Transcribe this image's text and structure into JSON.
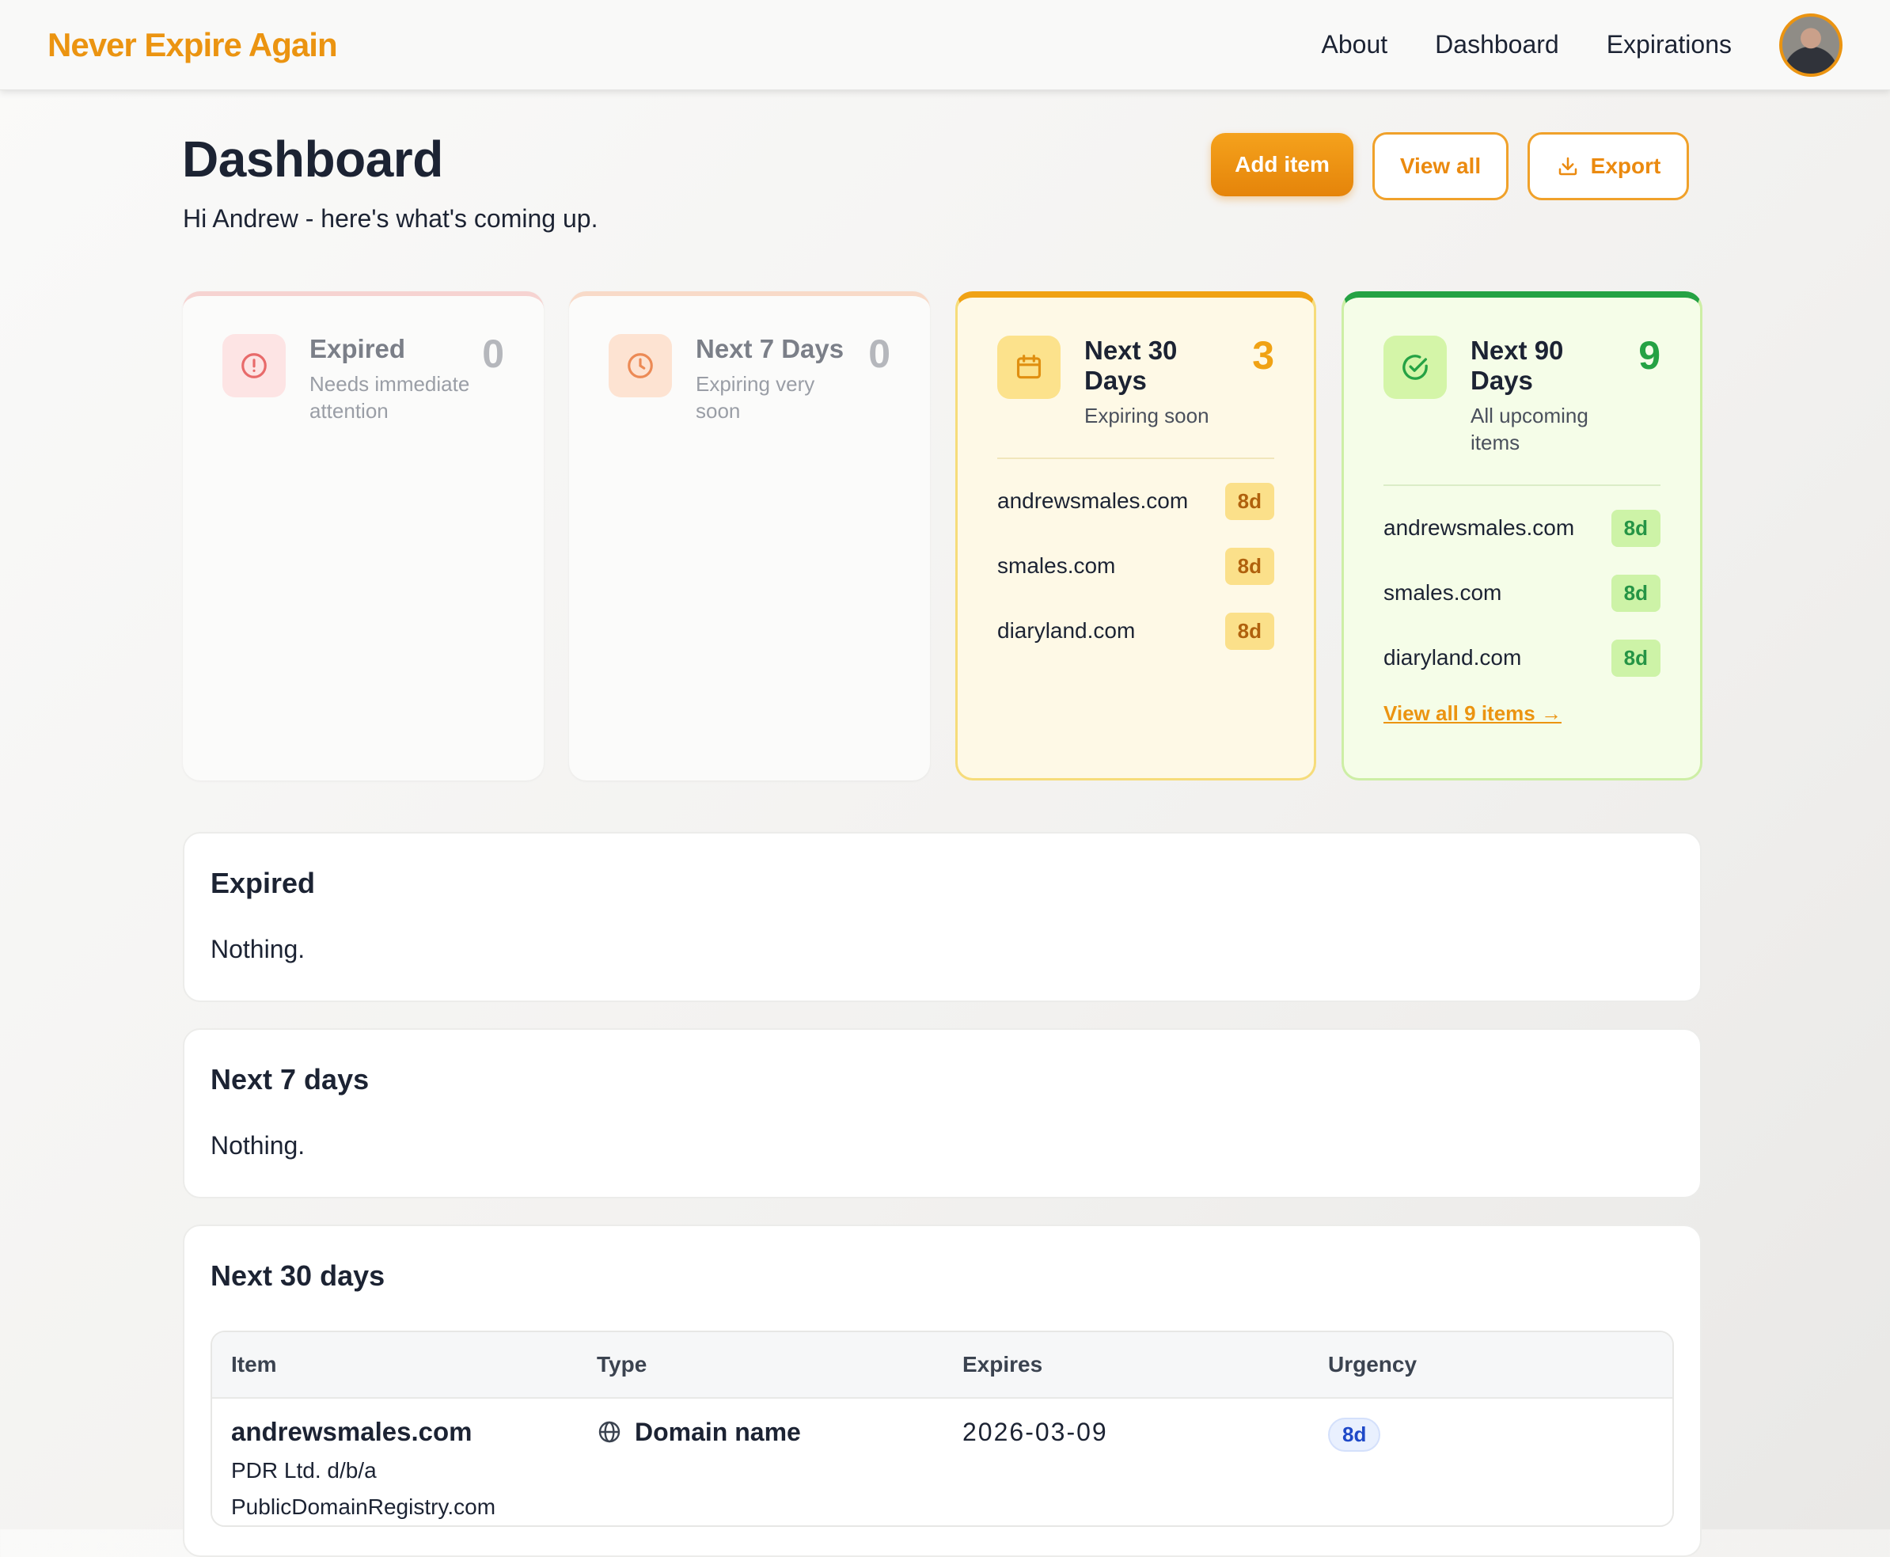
{
  "app": {
    "brand": "Never Expire Again",
    "nav": [
      "About",
      "Dashboard",
      "Expirations"
    ],
    "accent_color": "#eb9411"
  },
  "header": {
    "title": "Dashboard",
    "subtitle": "Hi Andrew - here's what's coming up.",
    "add_label": "Add item",
    "view_all_label": "View all",
    "export_label": "Export"
  },
  "cards": {
    "expired": {
      "title": "Expired",
      "desc": "Needs immediate attention",
      "count": "0",
      "icon": "alert-circle-icon",
      "color": "#e86a6a"
    },
    "next7": {
      "title": "Next 7 Days",
      "desc": "Expiring very soon",
      "count": "0",
      "icon": "clock-icon",
      "color": "#ec8a55"
    },
    "next30": {
      "title": "Next 30 Days",
      "desc": "Expiring soon",
      "count": "3",
      "icon": "calendar-icon",
      "color": "#f0a214",
      "items": [
        {
          "name": "andrewsmales.com",
          "days": "8d"
        },
        {
          "name": "smales.com",
          "days": "8d"
        },
        {
          "name": "diaryland.com",
          "days": "8d"
        }
      ]
    },
    "next90": {
      "title": "Next 90 Days",
      "desc": "All upcoming items",
      "count": "9",
      "icon": "check-circle-icon",
      "color": "#25a244",
      "items": [
        {
          "name": "andrewsmales.com",
          "days": "8d"
        },
        {
          "name": "smales.com",
          "days": "8d"
        },
        {
          "name": "diaryland.com",
          "days": "8d"
        }
      ],
      "view_all_link": "View all 9 items →"
    }
  },
  "sections": {
    "expired": {
      "title": "Expired",
      "empty": "Nothing."
    },
    "next7": {
      "title": "Next 7 days",
      "empty": "Nothing."
    },
    "next30": {
      "title": "Next 30 days",
      "columns": [
        "Item",
        "Type",
        "Expires",
        "Urgency"
      ],
      "rows": [
        {
          "name": "andrewsmales.com",
          "registrar": "PDR Ltd. d/b/a PublicDomainRegistry.com",
          "type": "Domain name",
          "type_icon": "globe-icon",
          "expires": "2026-03-09",
          "urgency": "8d"
        }
      ]
    }
  }
}
